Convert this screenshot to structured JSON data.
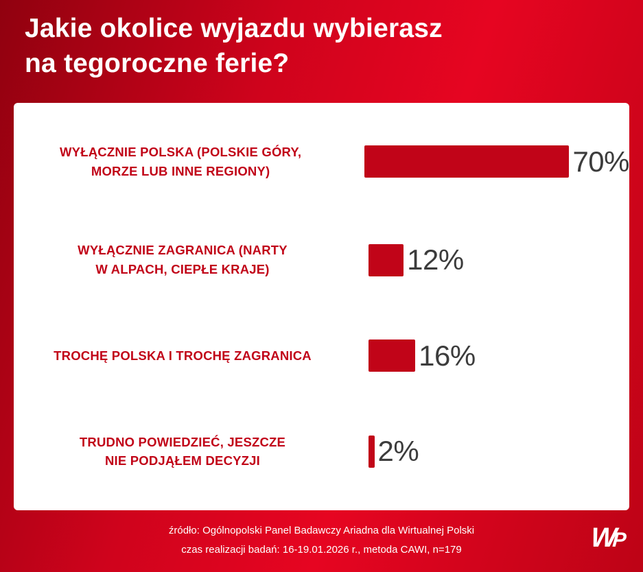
{
  "header": {
    "title_line1": "Jakie okolice wyjazdu wybierasz",
    "title_line2": "na tegoroczne ferie?"
  },
  "chart_data": {
    "type": "bar",
    "orientation": "horizontal",
    "title": "Jakie okolice wyjazdu wybierasz na tegoroczne ferie?",
    "categories": [
      "WYŁĄCZNIE POLSKA (POLSKIE GÓRY, MORZE LUB INNE REGIONY)",
      "WYŁĄCZNIE ZAGRANICA (NARTY W ALPACH, CIEPŁE KRAJE)",
      "TROCHĘ POLSKA I TROCHĘ ZAGRANICA",
      "TRUDNO POWIEDZIEĆ, JESZCZE NIE PODJĄŁEM DECYZJI"
    ],
    "values": [
      70,
      12,
      16,
      2
    ],
    "value_labels": [
      "70%",
      "12%",
      "16%",
      "2%"
    ],
    "xlim": [
      0,
      100
    ],
    "unit": "%",
    "bar_color": "#c10418",
    "label_color": "#c10418",
    "value_color": "#3c3c3c",
    "grid": false,
    "legend": false
  },
  "rows": [
    {
      "label_line1": "WYŁĄCZNIE POLSKA (POLSKIE GÓRY,",
      "label_line2": "MORZE LUB INNE REGIONY)",
      "value_label": "70%"
    },
    {
      "label_line1": "WYŁĄCZNIE ZAGRANICA (NARTY",
      "label_line2": "W ALPACH, CIEPŁE KRAJE)",
      "value_label": "12%"
    },
    {
      "label_line1": "TROCHĘ POLSKA I TROCHĘ ZAGRANICA",
      "label_line2": "",
      "value_label": "16%"
    },
    {
      "label_line1": "TRUDNO POWIEDZIEĆ, JESZCZE",
      "label_line2": "NIE PODJĄŁEM DECYZJI",
      "value_label": "2%"
    }
  ],
  "footer": {
    "source_line1": "źródło: Ogólnopolski Panel Badawczy Ariadna dla Wirtualnej Polski",
    "source_line2": "czas realizacji badań: 16-19.01.2026 r., metoda CAWI, n=179",
    "logo_text": "WP"
  }
}
